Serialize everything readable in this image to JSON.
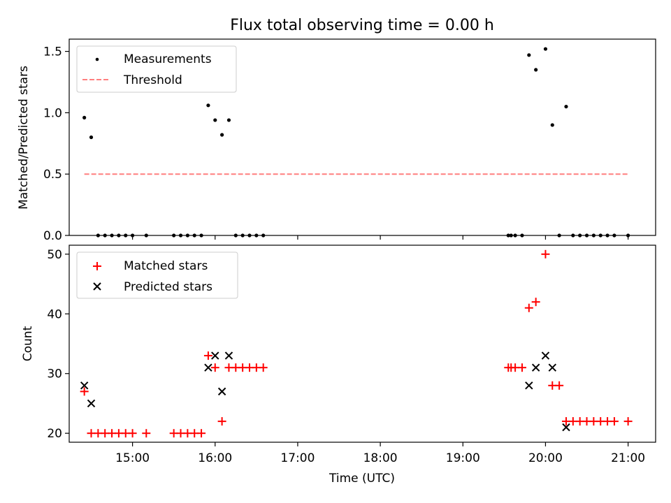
{
  "title": "Flux total observing time = 0.00 h",
  "x_axis": {
    "label": "Time (UTC)",
    "ticks": [
      "15:00",
      "16:00",
      "17:00",
      "18:00",
      "19:00",
      "20:00",
      "21:00"
    ]
  },
  "colors": {
    "measurements": "#000000",
    "threshold": "#ff7f7f",
    "matched": "#ff0000",
    "predicted": "#000000"
  },
  "chart_data": [
    {
      "type": "scatter",
      "ylabel": "Matched/Predicted stars",
      "xlim": [
        "14:14",
        "21:20"
      ],
      "ylim": [
        0,
        1.6
      ],
      "yticks": [
        "0.0",
        "0.5",
        "1.0",
        "1.5"
      ],
      "legend": {
        "placement": "top-left",
        "entries": [
          "Measurements",
          "Threshold"
        ]
      },
      "series": [
        {
          "name": "Measurements",
          "marker": "dot",
          "points": [
            {
              "x": "14:25",
              "y": 0.96
            },
            {
              "x": "14:30",
              "y": 0.8
            },
            {
              "x": "14:35",
              "y": 0.0
            },
            {
              "x": "14:40",
              "y": 0.0
            },
            {
              "x": "14:45",
              "y": 0.0
            },
            {
              "x": "14:50",
              "y": 0.0
            },
            {
              "x": "14:55",
              "y": 0.0
            },
            {
              "x": "15:00",
              "y": 0.0
            },
            {
              "x": "15:10",
              "y": 0.0
            },
            {
              "x": "15:30",
              "y": 0.0
            },
            {
              "x": "15:35",
              "y": 0.0
            },
            {
              "x": "15:40",
              "y": 0.0
            },
            {
              "x": "15:45",
              "y": 0.0
            },
            {
              "x": "15:50",
              "y": 0.0
            },
            {
              "x": "15:55",
              "y": 1.06
            },
            {
              "x": "16:00",
              "y": 0.94
            },
            {
              "x": "16:05",
              "y": 0.82
            },
            {
              "x": "16:10",
              "y": 0.94
            },
            {
              "x": "16:15",
              "y": 0.0
            },
            {
              "x": "16:20",
              "y": 0.0
            },
            {
              "x": "16:25",
              "y": 0.0
            },
            {
              "x": "16:30",
              "y": 0.0
            },
            {
              "x": "16:35",
              "y": 0.0
            },
            {
              "x": "19:33",
              "y": 0.0
            },
            {
              "x": "19:35",
              "y": 0.0
            },
            {
              "x": "19:38",
              "y": 0.0
            },
            {
              "x": "19:43",
              "y": 0.0
            },
            {
              "x": "19:48",
              "y": 1.47
            },
            {
              "x": "19:53",
              "y": 1.35
            },
            {
              "x": "20:00",
              "y": 1.52
            },
            {
              "x": "20:05",
              "y": 0.9
            },
            {
              "x": "20:10",
              "y": 0.0
            },
            {
              "x": "20:15",
              "y": 1.05
            },
            {
              "x": "20:20",
              "y": 0.0
            },
            {
              "x": "20:25",
              "y": 0.0
            },
            {
              "x": "20:30",
              "y": 0.0
            },
            {
              "x": "20:35",
              "y": 0.0
            },
            {
              "x": "20:40",
              "y": 0.0
            },
            {
              "x": "20:45",
              "y": 0.0
            },
            {
              "x": "20:50",
              "y": 0.0
            },
            {
              "x": "21:00",
              "y": 0.0
            }
          ]
        },
        {
          "name": "Threshold",
          "marker": "dashed-line",
          "points": [
            {
              "x": "14:25",
              "y": 0.5
            },
            {
              "x": "21:00",
              "y": 0.5
            }
          ]
        }
      ]
    },
    {
      "type": "scatter",
      "ylabel": "Count",
      "xlim": [
        "14:14",
        "21:20"
      ],
      "ylim": [
        18.5,
        51.5
      ],
      "yticks": [
        "20",
        "30",
        "40",
        "50"
      ],
      "legend": {
        "placement": "top-left",
        "entries": [
          "Matched stars",
          "Predicted stars"
        ]
      },
      "series": [
        {
          "name": "Matched stars",
          "marker": "plus",
          "points": [
            {
              "x": "14:25",
              "y": 27
            },
            {
              "x": "14:30",
              "y": 20
            },
            {
              "x": "14:35",
              "y": 20
            },
            {
              "x": "14:40",
              "y": 20
            },
            {
              "x": "14:45",
              "y": 20
            },
            {
              "x": "14:50",
              "y": 20
            },
            {
              "x": "14:55",
              "y": 20
            },
            {
              "x": "15:00",
              "y": 20
            },
            {
              "x": "15:10",
              "y": 20
            },
            {
              "x": "15:30",
              "y": 20
            },
            {
              "x": "15:35",
              "y": 20
            },
            {
              "x": "15:40",
              "y": 20
            },
            {
              "x": "15:45",
              "y": 20
            },
            {
              "x": "15:50",
              "y": 20
            },
            {
              "x": "15:55",
              "y": 33
            },
            {
              "x": "16:00",
              "y": 31
            },
            {
              "x": "16:05",
              "y": 22
            },
            {
              "x": "16:10",
              "y": 31
            },
            {
              "x": "16:15",
              "y": 31
            },
            {
              "x": "16:20",
              "y": 31
            },
            {
              "x": "16:25",
              "y": 31
            },
            {
              "x": "16:30",
              "y": 31
            },
            {
              "x": "16:35",
              "y": 31
            },
            {
              "x": "19:33",
              "y": 31
            },
            {
              "x": "19:35",
              "y": 31
            },
            {
              "x": "19:38",
              "y": 31
            },
            {
              "x": "19:43",
              "y": 31
            },
            {
              "x": "19:48",
              "y": 41
            },
            {
              "x": "19:53",
              "y": 42
            },
            {
              "x": "20:00",
              "y": 50
            },
            {
              "x": "20:05",
              "y": 28
            },
            {
              "x": "20:10",
              "y": 28
            },
            {
              "x": "20:15",
              "y": 22
            },
            {
              "x": "20:20",
              "y": 22
            },
            {
              "x": "20:25",
              "y": 22
            },
            {
              "x": "20:30",
              "y": 22
            },
            {
              "x": "20:35",
              "y": 22
            },
            {
              "x": "20:40",
              "y": 22
            },
            {
              "x": "20:45",
              "y": 22
            },
            {
              "x": "20:50",
              "y": 22
            },
            {
              "x": "21:00",
              "y": 22
            }
          ]
        },
        {
          "name": "Predicted stars",
          "marker": "x",
          "points": [
            {
              "x": "14:25",
              "y": 28
            },
            {
              "x": "14:30",
              "y": 25
            },
            {
              "x": "15:55",
              "y": 31
            },
            {
              "x": "16:00",
              "y": 33
            },
            {
              "x": "16:05",
              "y": 27
            },
            {
              "x": "16:10",
              "y": 33
            },
            {
              "x": "19:48",
              "y": 28
            },
            {
              "x": "19:53",
              "y": 31
            },
            {
              "x": "20:00",
              "y": 33
            },
            {
              "x": "20:05",
              "y": 31
            },
            {
              "x": "20:15",
              "y": 21
            }
          ]
        }
      ]
    }
  ]
}
